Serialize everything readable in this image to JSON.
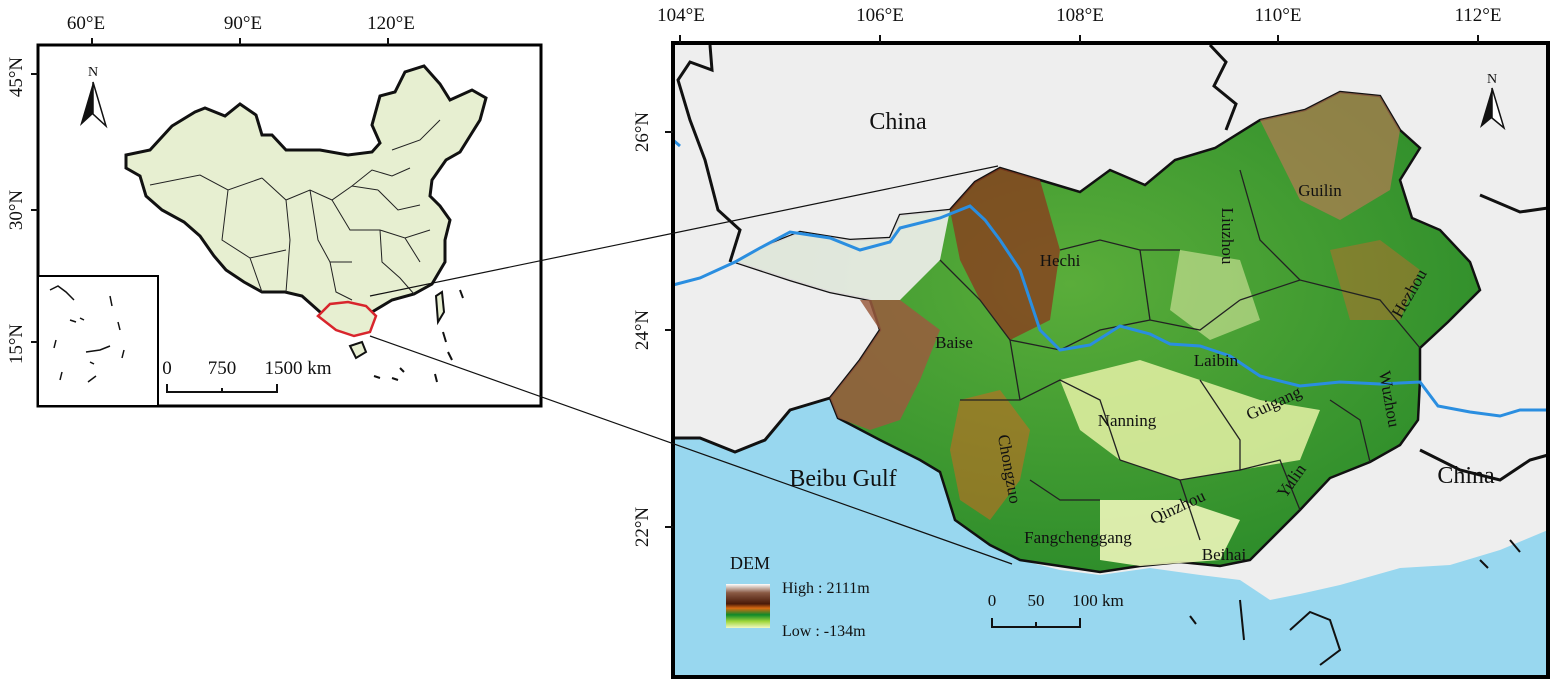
{
  "inset_map": {
    "lon_ticks": [
      "60°E",
      "90°E",
      "120°E"
    ],
    "lat_ticks": [
      "45°N",
      "30°N",
      "15°N"
    ],
    "north_label": "N",
    "scale": {
      "labels": [
        "0",
        "750",
        "1500 km"
      ]
    }
  },
  "main_map": {
    "lon_ticks": [
      "104°E",
      "106°E",
      "108°E",
      "110°E",
      "112°E"
    ],
    "lat_ticks": [
      "26°N",
      "24°N",
      "22°N"
    ],
    "north_label": "N",
    "region_labels": {
      "china_north": "China",
      "china_east": "China",
      "gulf": "Beibu Gulf"
    },
    "city_labels": [
      "Guilin",
      "Hechi",
      "Liuzhou",
      "Hezhou",
      "Baise",
      "Laibin",
      "Wuzhou",
      "Guigang",
      "Nanning",
      "Chongzuo",
      "Yulin",
      "Qinzhou",
      "Fangchenggang",
      "Beihai"
    ],
    "legend": {
      "title": "DEM",
      "high": "High : 2111m",
      "low": "Low : -134m"
    },
    "scale": {
      "labels": [
        "0",
        "50",
        "100 km"
      ]
    }
  },
  "colors": {
    "sea": "#98d7ef",
    "land_grey": "#efefef",
    "china_fill": "#e8f0d2",
    "river": "#2a8ee0",
    "highlight": "#d8252c",
    "dem_low": "#e9f7b3",
    "dem_mid": "#3da52f",
    "dem_high": "#7a2e14"
  }
}
